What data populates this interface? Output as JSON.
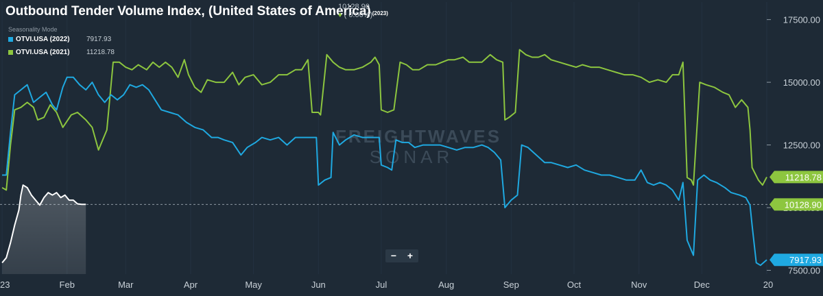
{
  "header": {
    "title": "Outbound Tender Volume Index, (United States of America)",
    "title_year": "(2023)",
    "current_value": "10128.90",
    "change": "( 0.00%)",
    "mode_label": "Seasonality Mode"
  },
  "legend": [
    {
      "name": "OTVI.USA (2022)",
      "value": "7917.93",
      "color": "#1fa9e1"
    },
    {
      "name": "OTVI.USA (2021)",
      "value": "11218.78",
      "color": "#8dc63f"
    }
  ],
  "zoom": {
    "minus": "−",
    "plus": "+"
  },
  "watermark": {
    "line1": "FREIGHTWAVES",
    "line2": "SONAR"
  },
  "colors": {
    "background": "#1e2a36",
    "s2022": "#1fa9e1",
    "s2021": "#8dc63f",
    "s2023": "#ffffff",
    "axis_text": "#c9d1d8"
  },
  "chart_data": {
    "type": "line",
    "xlabels": [
      "23",
      "Feb",
      "Mar",
      "Apr",
      "May",
      "Jun",
      "Jul",
      "Aug",
      "Sep",
      "Oct",
      "Nov",
      "Dec",
      "20"
    ],
    "xlabel_days": [
      0,
      31,
      59,
      90,
      120,
      151,
      181,
      212,
      243,
      273,
      304,
      334,
      365
    ],
    "x_range_days": [
      -1,
      365
    ],
    "yticks": [
      7500,
      10000,
      12500,
      15000,
      17500
    ],
    "ytick_labels": [
      "7500.00",
      "10000.00",
      "12500.00",
      "15000.00",
      "17500.00"
    ],
    "ylim": [
      7350,
      18200
    ],
    "reference_line": {
      "value": 10128.9,
      "label": "10128.90"
    },
    "series": [
      {
        "name": "OTVI.USA (2021)",
        "key": "s2021",
        "last_label": "11218.78",
        "points": [
          [
            0,
            10800
          ],
          [
            2,
            10700
          ],
          [
            4,
            12500
          ],
          [
            6,
            13900
          ],
          [
            9,
            14000
          ],
          [
            12,
            14200
          ],
          [
            15,
            14000
          ],
          [
            17,
            13500
          ],
          [
            20,
            13600
          ],
          [
            23,
            14100
          ],
          [
            26,
            13800
          ],
          [
            29,
            13200
          ],
          [
            33,
            13700
          ],
          [
            36,
            13800
          ],
          [
            40,
            13500
          ],
          [
            43,
            13200
          ],
          [
            46,
            12300
          ],
          [
            48,
            12700
          ],
          [
            50,
            13100
          ],
          [
            53,
            15800
          ],
          [
            56,
            15800
          ],
          [
            59,
            15600
          ],
          [
            62,
            15500
          ],
          [
            65,
            15700
          ],
          [
            69,
            15500
          ],
          [
            72,
            15800
          ],
          [
            75,
            15600
          ],
          [
            78,
            15800
          ],
          [
            81,
            15600
          ],
          [
            84,
            15200
          ],
          [
            87,
            15900
          ],
          [
            89,
            15300
          ],
          [
            92,
            14800
          ],
          [
            95,
            14600
          ],
          [
            98,
            15100
          ],
          [
            102,
            15000
          ],
          [
            106,
            15000
          ],
          [
            110,
            15400
          ],
          [
            113,
            14900
          ],
          [
            116,
            15200
          ],
          [
            120,
            15300
          ],
          [
            124,
            14900
          ],
          [
            128,
            15000
          ],
          [
            132,
            15300
          ],
          [
            136,
            15300
          ],
          [
            140,
            15500
          ],
          [
            143,
            15500
          ],
          [
            146,
            15900
          ],
          [
            148,
            13800
          ],
          [
            151,
            13800
          ],
          [
            152,
            13700
          ],
          [
            155,
            16100
          ],
          [
            158,
            15800
          ],
          [
            161,
            15600
          ],
          [
            164,
            15500
          ],
          [
            168,
            15500
          ],
          [
            172,
            15600
          ],
          [
            176,
            15800
          ],
          [
            178,
            16000
          ],
          [
            180,
            15700
          ],
          [
            181,
            13900
          ],
          [
            184,
            13800
          ],
          [
            187,
            13900
          ],
          [
            190,
            15800
          ],
          [
            193,
            15700
          ],
          [
            196,
            15500
          ],
          [
            199,
            15500
          ],
          [
            203,
            15700
          ],
          [
            207,
            15700
          ],
          [
            210,
            15800
          ],
          [
            213,
            15900
          ],
          [
            216,
            15900
          ],
          [
            220,
            16000
          ],
          [
            223,
            15800
          ],
          [
            226,
            15800
          ],
          [
            229,
            15800
          ],
          [
            233,
            16100
          ],
          [
            236,
            15900
          ],
          [
            239,
            15800
          ],
          [
            240,
            13500
          ],
          [
            242,
            13600
          ],
          [
            245,
            13800
          ],
          [
            247,
            16300
          ],
          [
            250,
            16100
          ],
          [
            253,
            16000
          ],
          [
            256,
            16000
          ],
          [
            259,
            16100
          ],
          [
            262,
            15900
          ],
          [
            266,
            15800
          ],
          [
            270,
            15700
          ],
          [
            274,
            15600
          ],
          [
            277,
            15700
          ],
          [
            281,
            15600
          ],
          [
            285,
            15600
          ],
          [
            289,
            15500
          ],
          [
            293,
            15400
          ],
          [
            297,
            15300
          ],
          [
            301,
            15300
          ],
          [
            305,
            15200
          ],
          [
            309,
            15000
          ],
          [
            313,
            15100
          ],
          [
            317,
            15000
          ],
          [
            320,
            15300
          ],
          [
            323,
            15300
          ],
          [
            325,
            15800
          ],
          [
            327,
            11200
          ],
          [
            329,
            11100
          ],
          [
            330,
            10900
          ],
          [
            333,
            15000
          ],
          [
            336,
            14900
          ],
          [
            340,
            14800
          ],
          [
            344,
            14600
          ],
          [
            347,
            14500
          ],
          [
            350,
            14000
          ],
          [
            353,
            14300
          ],
          [
            356,
            14000
          ],
          [
            357,
            13100
          ],
          [
            358,
            11600
          ],
          [
            361,
            11100
          ],
          [
            363,
            10900
          ],
          [
            365,
            11220
          ]
        ]
      },
      {
        "name": "OTVI.USA (2022)",
        "key": "s2022",
        "last_label": "7917.93",
        "points": [
          [
            0,
            11300
          ],
          [
            2,
            11300
          ],
          [
            4,
            13000
          ],
          [
            6,
            14500
          ],
          [
            9,
            14700
          ],
          [
            12,
            14900
          ],
          [
            15,
            14200
          ],
          [
            18,
            14400
          ],
          [
            21,
            14600
          ],
          [
            24,
            14100
          ],
          [
            26,
            13900
          ],
          [
            29,
            14800
          ],
          [
            31,
            15200
          ],
          [
            34,
            15200
          ],
          [
            37,
            14900
          ],
          [
            40,
            14700
          ],
          [
            43,
            15000
          ],
          [
            46,
            14500
          ],
          [
            49,
            14200
          ],
          [
            52,
            14500
          ],
          [
            55,
            14300
          ],
          [
            58,
            14500
          ],
          [
            61,
            14900
          ],
          [
            64,
            14800
          ],
          [
            67,
            14900
          ],
          [
            70,
            14700
          ],
          [
            73,
            14300
          ],
          [
            76,
            13900
          ],
          [
            80,
            13800
          ],
          [
            84,
            13700
          ],
          [
            88,
            13400
          ],
          [
            92,
            13200
          ],
          [
            96,
            13100
          ],
          [
            100,
            12800
          ],
          [
            103,
            12800
          ],
          [
            106,
            12700
          ],
          [
            110,
            12600
          ],
          [
            114,
            12100
          ],
          [
            117,
            12400
          ],
          [
            121,
            12600
          ],
          [
            124,
            12800
          ],
          [
            128,
            12700
          ],
          [
            132,
            12800
          ],
          [
            136,
            12500
          ],
          [
            140,
            12800
          ],
          [
            144,
            12800
          ],
          [
            148,
            12800
          ],
          [
            150,
            12800
          ],
          [
            151,
            10900
          ],
          [
            154,
            11100
          ],
          [
            157,
            11200
          ],
          [
            158,
            13000
          ],
          [
            161,
            12500
          ],
          [
            164,
            12700
          ],
          [
            168,
            12900
          ],
          [
            172,
            12800
          ],
          [
            176,
            12800
          ],
          [
            180,
            12800
          ],
          [
            181,
            11700
          ],
          [
            184,
            11600
          ],
          [
            186,
            11500
          ],
          [
            188,
            12700
          ],
          [
            191,
            12600
          ],
          [
            194,
            12600
          ],
          [
            197,
            12400
          ],
          [
            201,
            12500
          ],
          [
            205,
            12500
          ],
          [
            209,
            12500
          ],
          [
            213,
            12400
          ],
          [
            217,
            12300
          ],
          [
            221,
            12400
          ],
          [
            225,
            12400
          ],
          [
            229,
            12500
          ],
          [
            232,
            12400
          ],
          [
            235,
            12200
          ],
          [
            238,
            11900
          ],
          [
            240,
            10000
          ],
          [
            243,
            10300
          ],
          [
            246,
            10500
          ],
          [
            248,
            12500
          ],
          [
            251,
            12400
          ],
          [
            255,
            12100
          ],
          [
            259,
            11800
          ],
          [
            262,
            11800
          ],
          [
            266,
            11700
          ],
          [
            270,
            11600
          ],
          [
            274,
            11700
          ],
          [
            278,
            11500
          ],
          [
            282,
            11400
          ],
          [
            286,
            11300
          ],
          [
            290,
            11300
          ],
          [
            294,
            11200
          ],
          [
            298,
            11100
          ],
          [
            302,
            11100
          ],
          [
            305,
            11500
          ],
          [
            308,
            11000
          ],
          [
            311,
            10900
          ],
          [
            314,
            11000
          ],
          [
            317,
            10900
          ],
          [
            320,
            10700
          ],
          [
            323,
            10300
          ],
          [
            325,
            11000
          ],
          [
            327,
            8700
          ],
          [
            329,
            8300
          ],
          [
            330,
            8100
          ],
          [
            332,
            11100
          ],
          [
            335,
            11300
          ],
          [
            338,
            11100
          ],
          [
            341,
            11000
          ],
          [
            345,
            10800
          ],
          [
            348,
            10600
          ],
          [
            352,
            10500
          ],
          [
            355,
            10400
          ],
          [
            357,
            10100
          ],
          [
            358,
            9300
          ],
          [
            360,
            7800
          ],
          [
            362,
            7700
          ],
          [
            365,
            7918
          ]
        ]
      },
      {
        "name": "OTVI.USA (2023)",
        "key": "s2023",
        "points": [
          [
            0,
            7800
          ],
          [
            2,
            8000
          ],
          [
            4,
            8600
          ],
          [
            6,
            9300
          ],
          [
            8,
            9900
          ],
          [
            9,
            10500
          ],
          [
            10,
            10900
          ],
          [
            12,
            10800
          ],
          [
            14,
            10500
          ],
          [
            16,
            10300
          ],
          [
            18,
            10100
          ],
          [
            20,
            10400
          ],
          [
            22,
            10600
          ],
          [
            24,
            10500
          ],
          [
            26,
            10600
          ],
          [
            28,
            10400
          ],
          [
            30,
            10500
          ],
          [
            32,
            10300
          ],
          [
            34,
            10300
          ],
          [
            36,
            10150
          ],
          [
            38,
            10130
          ],
          [
            40,
            10129
          ]
        ]
      }
    ]
  }
}
